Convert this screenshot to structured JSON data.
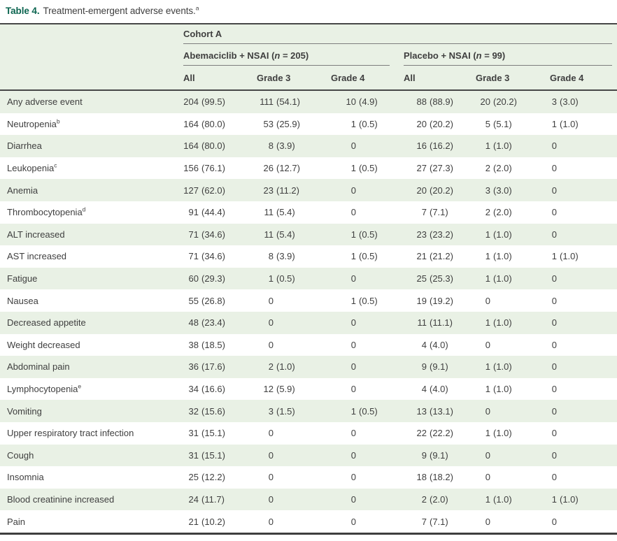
{
  "title": {
    "label": "Table 4.",
    "text": "Treatment-emergent adverse events.",
    "sup": "a"
  },
  "table": {
    "cohort_header": "Cohort A",
    "groups": [
      {
        "name": "Abemaciclib + NSAI (",
        "n_italic": "n",
        "n_rest": " = 205)"
      },
      {
        "name": "Placebo + NSAI (",
        "n_italic": "n",
        "n_rest": " = 99)"
      }
    ],
    "columns": [
      "All",
      "Grade 3",
      "Grade 4",
      "All",
      "Grade 3",
      "Grade 4"
    ],
    "rows": [
      {
        "label": "Any adverse event",
        "sup": "",
        "cells": [
          {
            "int": "204",
            "pct": "(99.5)"
          },
          {
            "int": "111",
            "pct": "(54.1)"
          },
          {
            "int": "10",
            "pct": "(4.9)"
          },
          {
            "int": "88",
            "pct": "(88.9)"
          },
          {
            "int": "20",
            "pct": "(20.2)"
          },
          {
            "int": "3",
            "pct": "(3.0)"
          }
        ]
      },
      {
        "label": "Neutropenia",
        "sup": "b",
        "cells": [
          {
            "int": "164",
            "pct": "(80.0)"
          },
          {
            "int": "53",
            "pct": "(25.9)"
          },
          {
            "int": "1",
            "pct": "(0.5)"
          },
          {
            "int": "20",
            "pct": "(20.2)"
          },
          {
            "int": "5",
            "pct": "(5.1)"
          },
          {
            "int": "1",
            "pct": "(1.0)"
          }
        ]
      },
      {
        "label": "Diarrhea",
        "sup": "",
        "cells": [
          {
            "int": "164",
            "pct": "(80.0)"
          },
          {
            "int": "8",
            "pct": "(3.9)"
          },
          {
            "int": "0",
            "pct": ""
          },
          {
            "int": "16",
            "pct": "(16.2)"
          },
          {
            "int": "1",
            "pct": "(1.0)"
          },
          {
            "int": "0",
            "pct": ""
          }
        ]
      },
      {
        "label": "Leukopenia",
        "sup": "c",
        "cells": [
          {
            "int": "156",
            "pct": "(76.1)"
          },
          {
            "int": "26",
            "pct": "(12.7)"
          },
          {
            "int": "1",
            "pct": "(0.5)"
          },
          {
            "int": "27",
            "pct": "(27.3)"
          },
          {
            "int": "2",
            "pct": "(2.0)"
          },
          {
            "int": "0",
            "pct": ""
          }
        ]
      },
      {
        "label": "Anemia",
        "sup": "",
        "cells": [
          {
            "int": "127",
            "pct": "(62.0)"
          },
          {
            "int": "23",
            "pct": "(11.2)"
          },
          {
            "int": "0",
            "pct": ""
          },
          {
            "int": "20",
            "pct": "(20.2)"
          },
          {
            "int": "3",
            "pct": "(3.0)"
          },
          {
            "int": "0",
            "pct": ""
          }
        ]
      },
      {
        "label": "Thrombocytopenia",
        "sup": "d",
        "cells": [
          {
            "int": "91",
            "pct": "(44.4)"
          },
          {
            "int": "11",
            "pct": "(5.4)"
          },
          {
            "int": "0",
            "pct": ""
          },
          {
            "int": "7",
            "pct": "(7.1)"
          },
          {
            "int": "2",
            "pct": "(2.0)"
          },
          {
            "int": "0",
            "pct": ""
          }
        ]
      },
      {
        "label": "ALT increased",
        "sup": "",
        "cells": [
          {
            "int": "71",
            "pct": "(34.6)"
          },
          {
            "int": "11",
            "pct": "(5.4)"
          },
          {
            "int": "1",
            "pct": "(0.5)"
          },
          {
            "int": "23",
            "pct": "(23.2)"
          },
          {
            "int": "1",
            "pct": "(1.0)"
          },
          {
            "int": "0",
            "pct": ""
          }
        ]
      },
      {
        "label": "AST increased",
        "sup": "",
        "cells": [
          {
            "int": "71",
            "pct": "(34.6)"
          },
          {
            "int": "8",
            "pct": "(3.9)"
          },
          {
            "int": "1",
            "pct": "(0.5)"
          },
          {
            "int": "21",
            "pct": "(21.2)"
          },
          {
            "int": "1",
            "pct": "(1.0)"
          },
          {
            "int": "1",
            "pct": "(1.0)"
          }
        ]
      },
      {
        "label": "Fatigue",
        "sup": "",
        "cells": [
          {
            "int": "60",
            "pct": "(29.3)"
          },
          {
            "int": "1",
            "pct": "(0.5)"
          },
          {
            "int": "0",
            "pct": ""
          },
          {
            "int": "25",
            "pct": "(25.3)"
          },
          {
            "int": "1",
            "pct": "(1.0)"
          },
          {
            "int": "0",
            "pct": ""
          }
        ]
      },
      {
        "label": "Nausea",
        "sup": "",
        "cells": [
          {
            "int": "55",
            "pct": "(26.8)"
          },
          {
            "int": "0",
            "pct": ""
          },
          {
            "int": "1",
            "pct": "(0.5)"
          },
          {
            "int": "19",
            "pct": "(19.2)"
          },
          {
            "int": "0",
            "pct": ""
          },
          {
            "int": "0",
            "pct": ""
          }
        ]
      },
      {
        "label": "Decreased appetite",
        "sup": "",
        "cells": [
          {
            "int": "48",
            "pct": "(23.4)"
          },
          {
            "int": "0",
            "pct": ""
          },
          {
            "int": "0",
            "pct": ""
          },
          {
            "int": "11",
            "pct": "(11.1)"
          },
          {
            "int": "1",
            "pct": "(1.0)"
          },
          {
            "int": "0",
            "pct": ""
          }
        ]
      },
      {
        "label": "Weight decreased",
        "sup": "",
        "cells": [
          {
            "int": "38",
            "pct": "(18.5)"
          },
          {
            "int": "0",
            "pct": ""
          },
          {
            "int": "0",
            "pct": ""
          },
          {
            "int": "4",
            "pct": "(4.0)"
          },
          {
            "int": "0",
            "pct": ""
          },
          {
            "int": "0",
            "pct": ""
          }
        ]
      },
      {
        "label": "Abdominal pain",
        "sup": "",
        "cells": [
          {
            "int": "36",
            "pct": "(17.6)"
          },
          {
            "int": "2",
            "pct": "(1.0)"
          },
          {
            "int": "0",
            "pct": ""
          },
          {
            "int": "9",
            "pct": "(9.1)"
          },
          {
            "int": "1",
            "pct": "(1.0)"
          },
          {
            "int": "0",
            "pct": ""
          }
        ]
      },
      {
        "label": "Lymphocytopenia",
        "sup": "e",
        "cells": [
          {
            "int": "34",
            "pct": "(16.6)"
          },
          {
            "int": "12",
            "pct": "(5.9)"
          },
          {
            "int": "0",
            "pct": ""
          },
          {
            "int": "4",
            "pct": "(4.0)"
          },
          {
            "int": "1",
            "pct": "(1.0)"
          },
          {
            "int": "0",
            "pct": ""
          }
        ]
      },
      {
        "label": "Vomiting",
        "sup": "",
        "cells": [
          {
            "int": "32",
            "pct": "(15.6)"
          },
          {
            "int": "3",
            "pct": "(1.5)"
          },
          {
            "int": "1",
            "pct": "(0.5)"
          },
          {
            "int": "13",
            "pct": "(13.1)"
          },
          {
            "int": "0",
            "pct": ""
          },
          {
            "int": "0",
            "pct": ""
          }
        ]
      },
      {
        "label": "Upper respiratory tract infection",
        "sup": "",
        "cells": [
          {
            "int": "31",
            "pct": "(15.1)"
          },
          {
            "int": "0",
            "pct": ""
          },
          {
            "int": "0",
            "pct": ""
          },
          {
            "int": "22",
            "pct": "(22.2)"
          },
          {
            "int": "1",
            "pct": "(1.0)"
          },
          {
            "int": "0",
            "pct": ""
          }
        ]
      },
      {
        "label": "Cough",
        "sup": "",
        "cells": [
          {
            "int": "31",
            "pct": "(15.1)"
          },
          {
            "int": "0",
            "pct": ""
          },
          {
            "int": "0",
            "pct": ""
          },
          {
            "int": "9",
            "pct": "(9.1)"
          },
          {
            "int": "0",
            "pct": ""
          },
          {
            "int": "0",
            "pct": ""
          }
        ]
      },
      {
        "label": "Insomnia",
        "sup": "",
        "cells": [
          {
            "int": "25",
            "pct": "(12.2)"
          },
          {
            "int": "0",
            "pct": ""
          },
          {
            "int": "0",
            "pct": ""
          },
          {
            "int": "18",
            "pct": "(18.2)"
          },
          {
            "int": "0",
            "pct": ""
          },
          {
            "int": "0",
            "pct": ""
          }
        ]
      },
      {
        "label": "Blood creatinine increased",
        "sup": "",
        "cells": [
          {
            "int": "24",
            "pct": "(11.7)"
          },
          {
            "int": "0",
            "pct": ""
          },
          {
            "int": "0",
            "pct": ""
          },
          {
            "int": "2",
            "pct": "(2.0)"
          },
          {
            "int": "1",
            "pct": "(1.0)"
          },
          {
            "int": "1",
            "pct": "(1.0)"
          }
        ]
      },
      {
        "label": "Pain",
        "sup": "",
        "cells": [
          {
            "int": "21",
            "pct": "(10.2)"
          },
          {
            "int": "0",
            "pct": ""
          },
          {
            "int": "0",
            "pct": ""
          },
          {
            "int": "7",
            "pct": "(7.1)"
          },
          {
            "int": "0",
            "pct": ""
          },
          {
            "int": "0",
            "pct": ""
          }
        ]
      }
    ]
  },
  "colors": {
    "title_accent": "#0c6550",
    "row_stripe": "#e9f1e5",
    "text": "#3f3f3f",
    "rule_dark": "#474747",
    "rule_hairline": "#7d7d7d"
  }
}
